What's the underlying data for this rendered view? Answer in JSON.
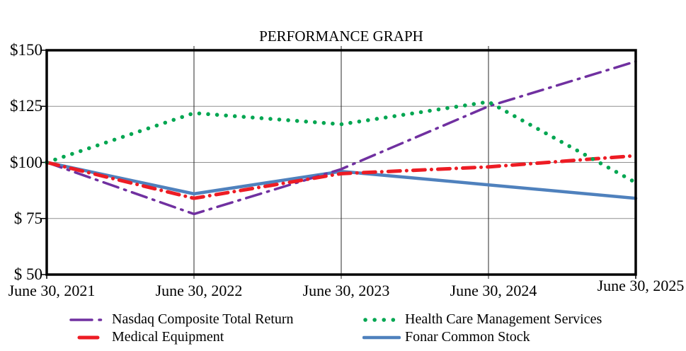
{
  "chart_data": {
    "type": "line",
    "title": "PERFORMANCE GRAPH",
    "x_labels": [
      "June 30, 2021",
      "June 30, 2022",
      "June 30, 2023",
      "June 30, 2024",
      "June 30, 2025"
    ],
    "y_tick_labels": [
      "$150",
      "$125",
      "$100",
      "$ 75",
      "$ 50"
    ],
    "y_tick_values": [
      150,
      125,
      100,
      75,
      50
    ],
    "ylim": [
      50,
      150
    ],
    "xlabel": "",
    "ylabel": "",
    "grid": true,
    "legend_position": "bottom-two-columns",
    "series": [
      {
        "name": "Nasdaq Composite Total Return",
        "color": "#7030A0",
        "line_style": "dash-dot",
        "values": [
          100,
          77,
          97,
          125,
          145
        ]
      },
      {
        "name": "Medical Equipment",
        "color": "#ED1C24",
        "line_style": "thick-dash-dot",
        "values": [
          100,
          84,
          95,
          98,
          103
        ]
      },
      {
        "name": "Health Care Management Services",
        "color": "#00A651",
        "line_style": "dotted",
        "values": [
          100,
          122,
          117,
          127,
          91
        ]
      },
      {
        "name": "Fonar Common Stock",
        "color": "#4F81BD",
        "line_style": "solid",
        "values": [
          100,
          86,
          96,
          90,
          84
        ]
      }
    ]
  },
  "colors": {
    "background": "#FFFFFF",
    "border": "#000000",
    "grid_horizontal": "#909090",
    "grid_vertical": "#2A2A2A",
    "text": "#000000"
  }
}
